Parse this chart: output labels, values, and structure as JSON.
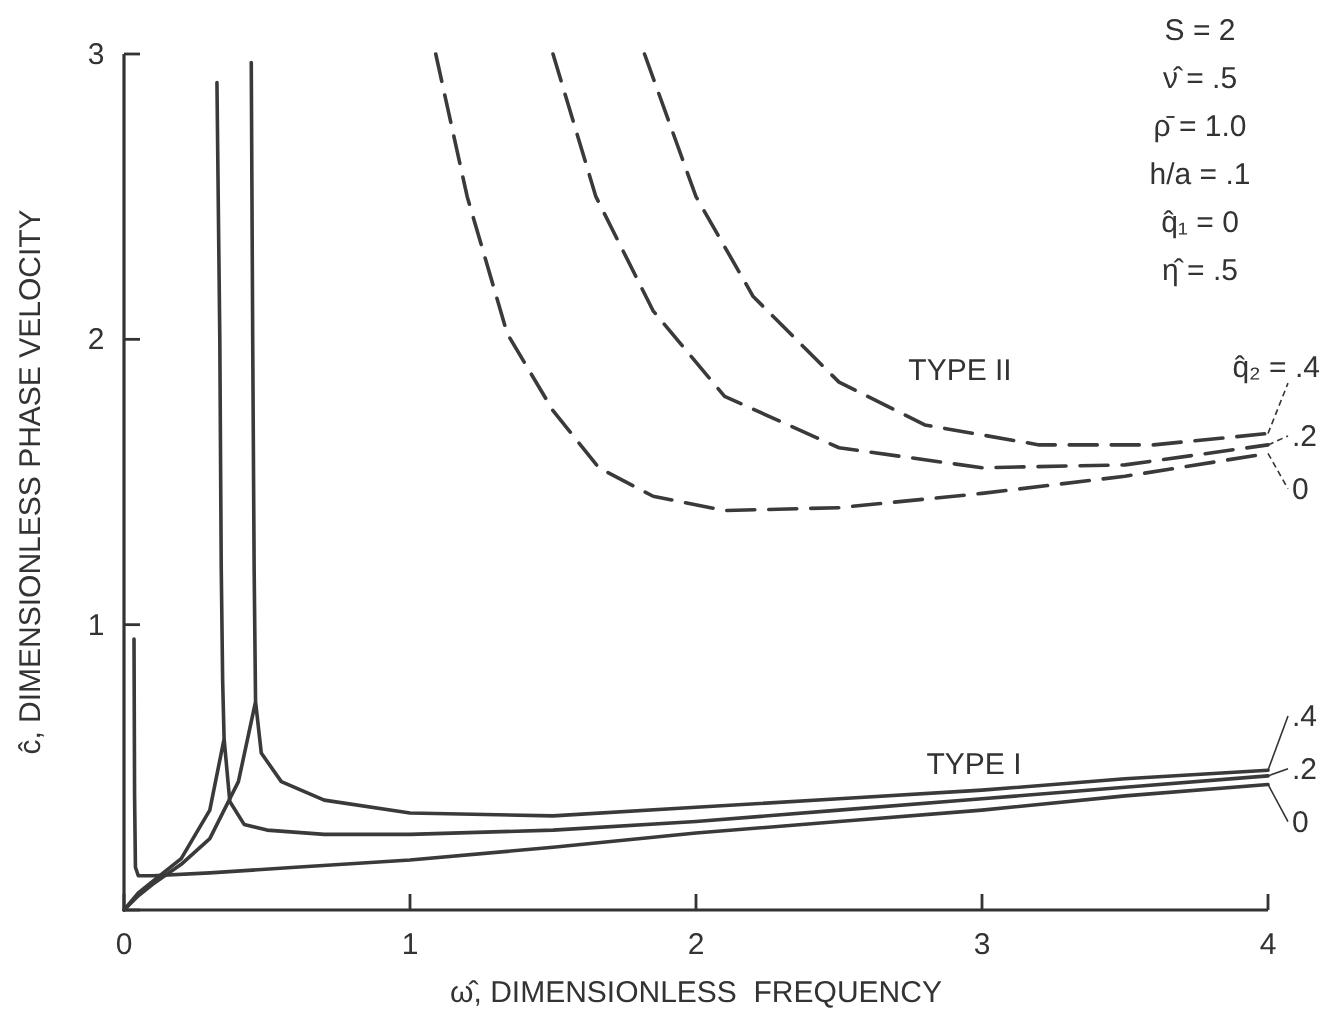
{
  "chart_data": {
    "type": "line",
    "xlabel": "ω̂, DIMENSIONLESS  FREQUENCY",
    "ylabel": "ĉ, DIMENSIONLESS PHASE VELOCITY",
    "xlim": [
      0,
      4
    ],
    "ylim": [
      0,
      3
    ],
    "xticks": [
      0,
      1,
      2,
      3,
      4
    ],
    "yticks": [
      {
        "value": 0,
        "label": null
      },
      1,
      2,
      3
    ],
    "grid": false,
    "legend": "right",
    "series": [
      {
        "name": "0",
        "color": "#3a3a3a",
        "line_style": "solid",
        "x": [
          0.035,
          0.037,
          0.04,
          0.05,
          0.1,
          0.3,
          0.6,
          1,
          1.5,
          2,
          2.5,
          3,
          3.5,
          4
        ],
        "values": [
          0.95,
          0.4,
          0.15,
          0.12,
          0.12,
          0.13,
          0.15,
          0.175,
          0.22,
          0.27,
          0.31,
          0.35,
          0.4,
          0.44
        ]
      },
      {
        "name": ".2",
        "color": "#3a3a3a",
        "line_style": "solid",
        "x": [
          0,
          0.05,
          0.1,
          0.2,
          0.3,
          0.35,
          null,
          0.325,
          0.335,
          0.34,
          0.345,
          0.35,
          0.37,
          0.42,
          0.5,
          0.7,
          1,
          1.5,
          2,
          2.5,
          3,
          3.5,
          4
        ],
        "values": [
          0,
          0.06,
          0.1,
          0.18,
          0.35,
          0.6,
          null,
          2.9,
          2.0,
          1.2,
          0.8,
          0.6,
          0.38,
          0.3,
          0.28,
          0.265,
          0.265,
          0.28,
          0.31,
          0.35,
          0.39,
          0.43,
          0.47
        ]
      },
      {
        "name": ".4",
        "color": "#3a3a3a",
        "line_style": "solid",
        "x": [
          0,
          0.05,
          0.1,
          0.2,
          0.3,
          0.4,
          0.46,
          null,
          0.445,
          0.45,
          0.455,
          0.46,
          0.48,
          0.55,
          0.7,
          1,
          1.5,
          2,
          2.5,
          3,
          3.5,
          4
        ],
        "values": [
          0,
          0.05,
          0.09,
          0.16,
          0.25,
          0.45,
          0.73,
          null,
          2.97,
          2.0,
          1.2,
          0.73,
          0.55,
          0.45,
          0.385,
          0.34,
          0.33,
          0.36,
          0.39,
          0.42,
          0.46,
          0.49
        ]
      },
      {
        "name": "0",
        "color": "#3a3a3a",
        "line_style": "dashed",
        "x": [
          1.09,
          1.2,
          1.34,
          1.5,
          1.66,
          1.85,
          2.1,
          2.5,
          3,
          3.5,
          4
        ],
        "values": [
          3,
          2.5,
          2.02,
          1.75,
          1.55,
          1.45,
          1.4,
          1.41,
          1.46,
          1.52,
          1.6
        ]
      },
      {
        "name": ".2",
        "color": "#3a3a3a",
        "line_style": "dashed",
        "x": [
          1.5,
          1.65,
          1.85,
          2.1,
          2.5,
          3,
          3.5,
          4
        ],
        "values": [
          3,
          2.5,
          2.1,
          1.8,
          1.62,
          1.55,
          1.56,
          1.63
        ]
      },
      {
        "name": "q̂₂ = .4",
        "color": "#3a3a3a",
        "line_style": "dashed",
        "x": [
          1.82,
          2,
          2.2,
          2.5,
          2.8,
          3.2,
          3.6,
          4
        ],
        "values": [
          3,
          2.5,
          2.15,
          1.85,
          1.7,
          1.63,
          1.63,
          1.67
        ]
      }
    ],
    "annotations": [
      "TYPE II",
      "TYPE I",
      "S = 2",
      "ν̂ = .5",
      "ρ̄ = 1.0",
      "h/a = .1",
      "q̂₁ = 0",
      "η̂ = .5"
    ]
  }
}
